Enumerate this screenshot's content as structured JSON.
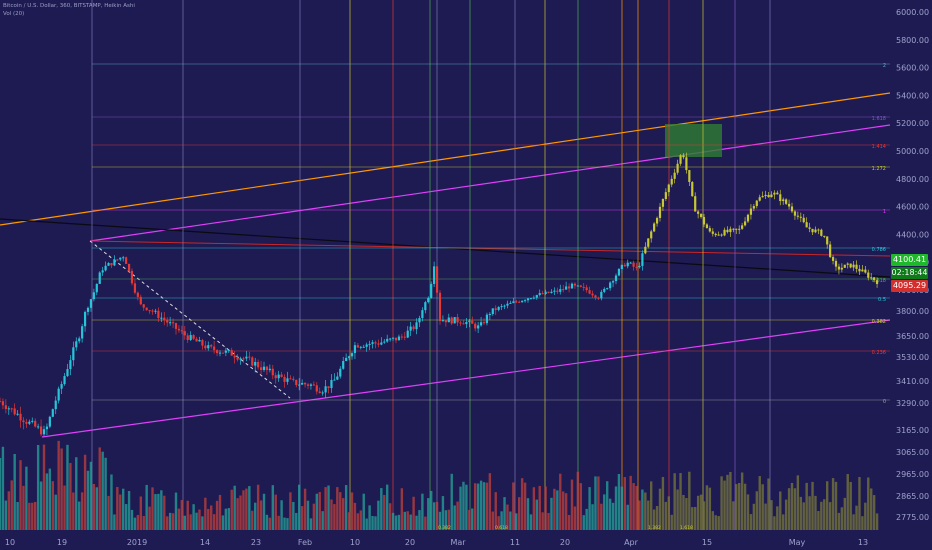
{
  "header": {
    "title": "Bitcoin / U.S. Dollar, 360, BITSTAMP, Heikin Ashi",
    "indicator": "Vol (20)"
  },
  "badges": {
    "last_price": "4100.41",
    "countdown": "02:18:44",
    "bid_price": "4095.29"
  },
  "colors": {
    "background": "#1e1a52",
    "bull": "#26c6da",
    "bear": "#e53935",
    "highlight": "#c8c832",
    "magenta": "#e040fb",
    "orange": "#ff9800",
    "green_box": "#2e7d32"
  },
  "chart_data": {
    "type": "candlestick",
    "symbol": "Bitcoin / U.S. Dollar",
    "interval": "360",
    "exchange": "BITSTAMP",
    "chart_style": "Heikin Ashi",
    "y_axis_ticks": [
      6000,
      5800,
      5600,
      5400,
      5200,
      5000,
      4800,
      4600,
      4400,
      4200,
      4000,
      3800,
      3650,
      3530,
      3410,
      3290,
      3165,
      3065,
      2965,
      2865,
      2775
    ],
    "ylim": [
      2700,
      6100
    ],
    "x_axis_ticks": [
      "10",
      "19",
      "2019",
      "14",
      "23",
      "Feb",
      "10",
      "20",
      "Mar",
      "11",
      "20",
      "Apr",
      "15",
      "May",
      "13"
    ],
    "price_path": [
      [
        0,
        3300
      ],
      [
        5,
        3200
      ],
      [
        8,
        3150
      ],
      [
        14,
        3650
      ],
      [
        18,
        4150
      ],
      [
        22,
        4250
      ],
      [
        25,
        3850
      ],
      [
        29,
        3750
      ],
      [
        33,
        3650
      ],
      [
        37,
        3580
      ],
      [
        41,
        3550
      ],
      [
        45,
        3500
      ],
      [
        48,
        3450
      ],
      [
        52,
        3400
      ],
      [
        55,
        3390
      ],
      [
        57,
        3360
      ],
      [
        59,
        3400
      ],
      [
        63,
        3600
      ],
      [
        67,
        3610
      ],
      [
        71,
        3640
      ],
      [
        74,
        3720
      ],
      [
        76,
        3950
      ],
      [
        77,
        4200
      ],
      [
        78,
        3750
      ],
      [
        82,
        3740
      ],
      [
        85,
        3700
      ],
      [
        87,
        3800
      ],
      [
        91,
        3880
      ],
      [
        95,
        3950
      ],
      [
        99,
        3990
      ],
      [
        101,
        4030
      ],
      [
        104,
        4000
      ],
      [
        106,
        3930
      ],
      [
        108,
        4050
      ],
      [
        111,
        4200
      ],
      [
        113,
        4150
      ],
      [
        116,
        4480
      ],
      [
        118,
        4700
      ],
      [
        121,
        5000
      ],
      [
        123,
        4600
      ],
      [
        126,
        4400
      ],
      [
        131,
        4430
      ],
      [
        134,
        4650
      ],
      [
        137,
        4700
      ],
      [
        140,
        4600
      ],
      [
        143,
        4450
      ],
      [
        146,
        4400
      ],
      [
        148,
        4150
      ],
      [
        151,
        4180
      ],
      [
        154,
        4100
      ],
      [
        156,
        4050
      ]
    ],
    "volume_axis_annotations": [
      "0.382",
      "0.618",
      "1.382",
      "1.618",
      "0.5",
      "0.382",
      "0.236"
    ],
    "fib_levels": [
      {
        "label": "2"
      },
      {
        "label": "1.618"
      },
      {
        "label": "1.414"
      },
      {
        "label": "1.272"
      },
      {
        "label": "1"
      },
      {
        "label": "0.786"
      },
      {
        "label": "0.618"
      },
      {
        "label": "0.5"
      },
      {
        "label": "0.382"
      },
      {
        "label": "0.236"
      },
      {
        "label": "0"
      }
    ],
    "annotations": [
      "1.382"
    ],
    "volume_series": "Vol (20)"
  }
}
